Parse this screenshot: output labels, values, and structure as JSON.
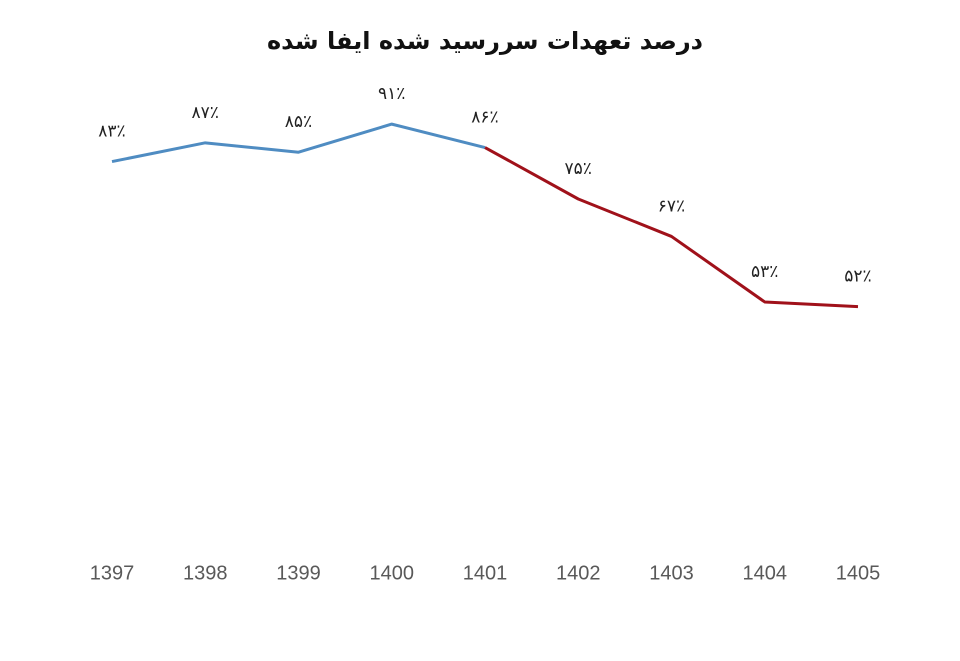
{
  "chart_data": {
    "type": "line",
    "title": "درصد تعهدات سررسید شده ایفا شده",
    "categories": [
      "1397",
      "1398",
      "1399",
      "1400",
      "1401",
      "1402",
      "1403",
      "1404",
      "1405"
    ],
    "series": [
      {
        "color": "#4f8cc2",
        "values": [
          83,
          87,
          85,
          91,
          86,
          null,
          null,
          null,
          null
        ],
        "value_labels": [
          "۸۳٪",
          "۸۷٪",
          "۸۵٪",
          "۹۱٪",
          "۸۶٪",
          null,
          null,
          null,
          null
        ]
      },
      {
        "color": "#a0111a",
        "values": [
          null,
          null,
          null,
          null,
          86,
          75,
          67,
          53,
          52
        ],
        "value_labels": [
          null,
          null,
          null,
          null,
          null,
          "۷۵٪",
          "۶۷٪",
          "۵۳٪",
          "۵۲٪"
        ]
      }
    ],
    "ylim": [
      0,
      100
    ],
    "grid": false
  }
}
